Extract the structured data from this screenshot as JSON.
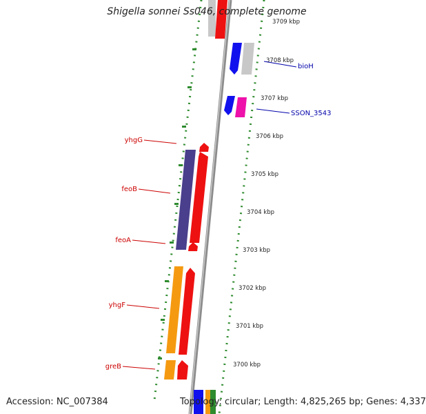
{
  "title": "Shigella sonnei Ss046, complete genome",
  "footer": {
    "accession": "Accession: NC_007384",
    "topology": "Topology: circular; Length: 4,825,265 bp; Genes: 4,337"
  },
  "ticks": [
    "3709 kbp",
    "3708 kbp",
    "3707 kbp",
    "3706 kbp",
    "3705 kbp",
    "3704 kbp",
    "3703 kbp",
    "3702 kbp",
    "3701 kbp",
    "3700 kbp"
  ],
  "gene_labels": {
    "bioH": "bioH",
    "sson": "SSON_3543",
    "yhgG": "yhgG",
    "feoB": "feoB",
    "feoA": "feoA",
    "yhgF": "yhgF",
    "greB": "greB"
  },
  "colors": {
    "red": "#ee1111",
    "blue": "#1111ee",
    "magenta": "#ee11aa",
    "navy": "#4a3f8c",
    "orange": "#f59a10",
    "gray": "#c8c8c8",
    "green": "#2e8b2e",
    "label_red": "#cc0000",
    "label_blue": "#0000aa"
  }
}
